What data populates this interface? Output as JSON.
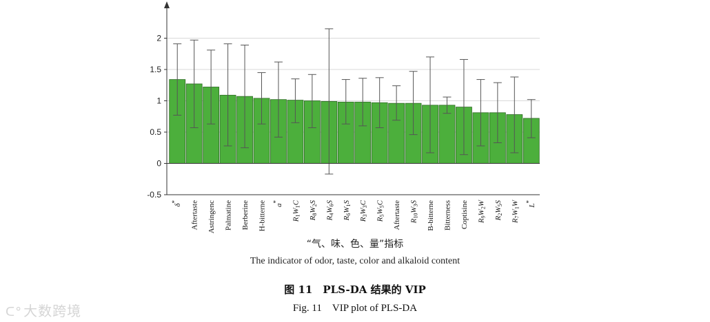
{
  "chart_data": {
    "type": "bar",
    "ylim": [
      -0.5,
      2.5
    ],
    "yticks": [
      "-0.5",
      "0",
      "0.5",
      "1",
      "1.5",
      "2"
    ],
    "ytick_values": [
      -0.5,
      0,
      0.5,
      1,
      1.5,
      2
    ],
    "grid": true,
    "categories": [
      "δ*",
      "Aftertaste",
      "Astringenc",
      "Palmatine",
      "Berberine",
      "H-bitterne",
      "a*",
      "R1W1C",
      "R8W2S",
      "R4W6S",
      "R6W1S",
      "R3W3C",
      "R5W5C",
      "Aftertaste",
      "R10W3S",
      "B-bitterne",
      "Bitterness",
      "Coptisine",
      "R9W2W",
      "R2W5S",
      "R7W1W",
      "L*"
    ],
    "category_labels": [
      {
        "b": "δ",
        "sup": "*"
      },
      {
        "b": "Aftertaste"
      },
      {
        "b": "Astringenc"
      },
      {
        "b": "Palmatine"
      },
      {
        "b": "Berberine"
      },
      {
        "b": "H-bitterne"
      },
      {
        "b": "a",
        "sup": "*"
      },
      {
        "b": "R",
        "s1": "1",
        "m": "W",
        "s2": "1",
        "e": "C"
      },
      {
        "b": "R",
        "s1": "8",
        "m": "W",
        "s2": "2",
        "e": "S"
      },
      {
        "b": "R",
        "s1": "4",
        "m": "W",
        "s2": "6",
        "e": "S"
      },
      {
        "b": "R",
        "s1": "6",
        "m": "W",
        "s2": "1",
        "e": "S"
      },
      {
        "b": "R",
        "s1": "3",
        "m": "W",
        "s2": "3",
        "e": "C"
      },
      {
        "b": "R",
        "s1": "5",
        "m": "W",
        "s2": "5",
        "e": "C"
      },
      {
        "b": "Aftertaste"
      },
      {
        "b": "R",
        "s1": "10",
        "m": "W",
        "s2": "3",
        "e": "S"
      },
      {
        "b": "B-bitterne"
      },
      {
        "b": "Bitterness"
      },
      {
        "b": "Coptisine"
      },
      {
        "b": "R",
        "s1": "9",
        "m": "W",
        "s2": "2",
        "e": "W"
      },
      {
        "b": "R",
        "s1": "2",
        "m": "W",
        "s2": "5",
        "e": "S"
      },
      {
        "b": "R",
        "s1": "7",
        "m": "W",
        "s2": "1",
        "e": "W"
      },
      {
        "b": "L",
        "sup": "*"
      }
    ],
    "values": [
      1.34,
      1.27,
      1.22,
      1.09,
      1.07,
      1.04,
      1.02,
      1.01,
      1.0,
      0.99,
      0.98,
      0.98,
      0.97,
      0.96,
      0.96,
      0.93,
      0.93,
      0.9,
      0.81,
      0.81,
      0.78,
      0.72
    ],
    "error_low": [
      0.77,
      0.57,
      0.63,
      0.28,
      0.25,
      0.63,
      0.42,
      0.65,
      0.57,
      -0.17,
      0.63,
      0.6,
      0.57,
      0.69,
      0.46,
      0.17,
      0.8,
      0.14,
      0.28,
      0.33,
      0.17,
      0.41
    ],
    "error_high": [
      1.91,
      1.97,
      1.81,
      1.91,
      1.89,
      1.45,
      1.62,
      1.35,
      1.42,
      2.15,
      1.34,
      1.36,
      1.37,
      1.24,
      1.47,
      1.7,
      1.06,
      1.66,
      1.34,
      1.29,
      1.38,
      1.02
    ],
    "bar_color": "#4caf3c",
    "bar_edge": "#2e6b24",
    "xlabel_cn": "“气、味、色、量”指标",
    "xlabel_en": "The indicator of odor, taste, color and alkaloid content"
  },
  "caption": {
    "cn": "图 11　PLS-DA 结果的 VIP",
    "en": "Fig. 11　VIP plot of PLS-DA"
  },
  "watermark": {
    "text": "大数跨境"
  }
}
